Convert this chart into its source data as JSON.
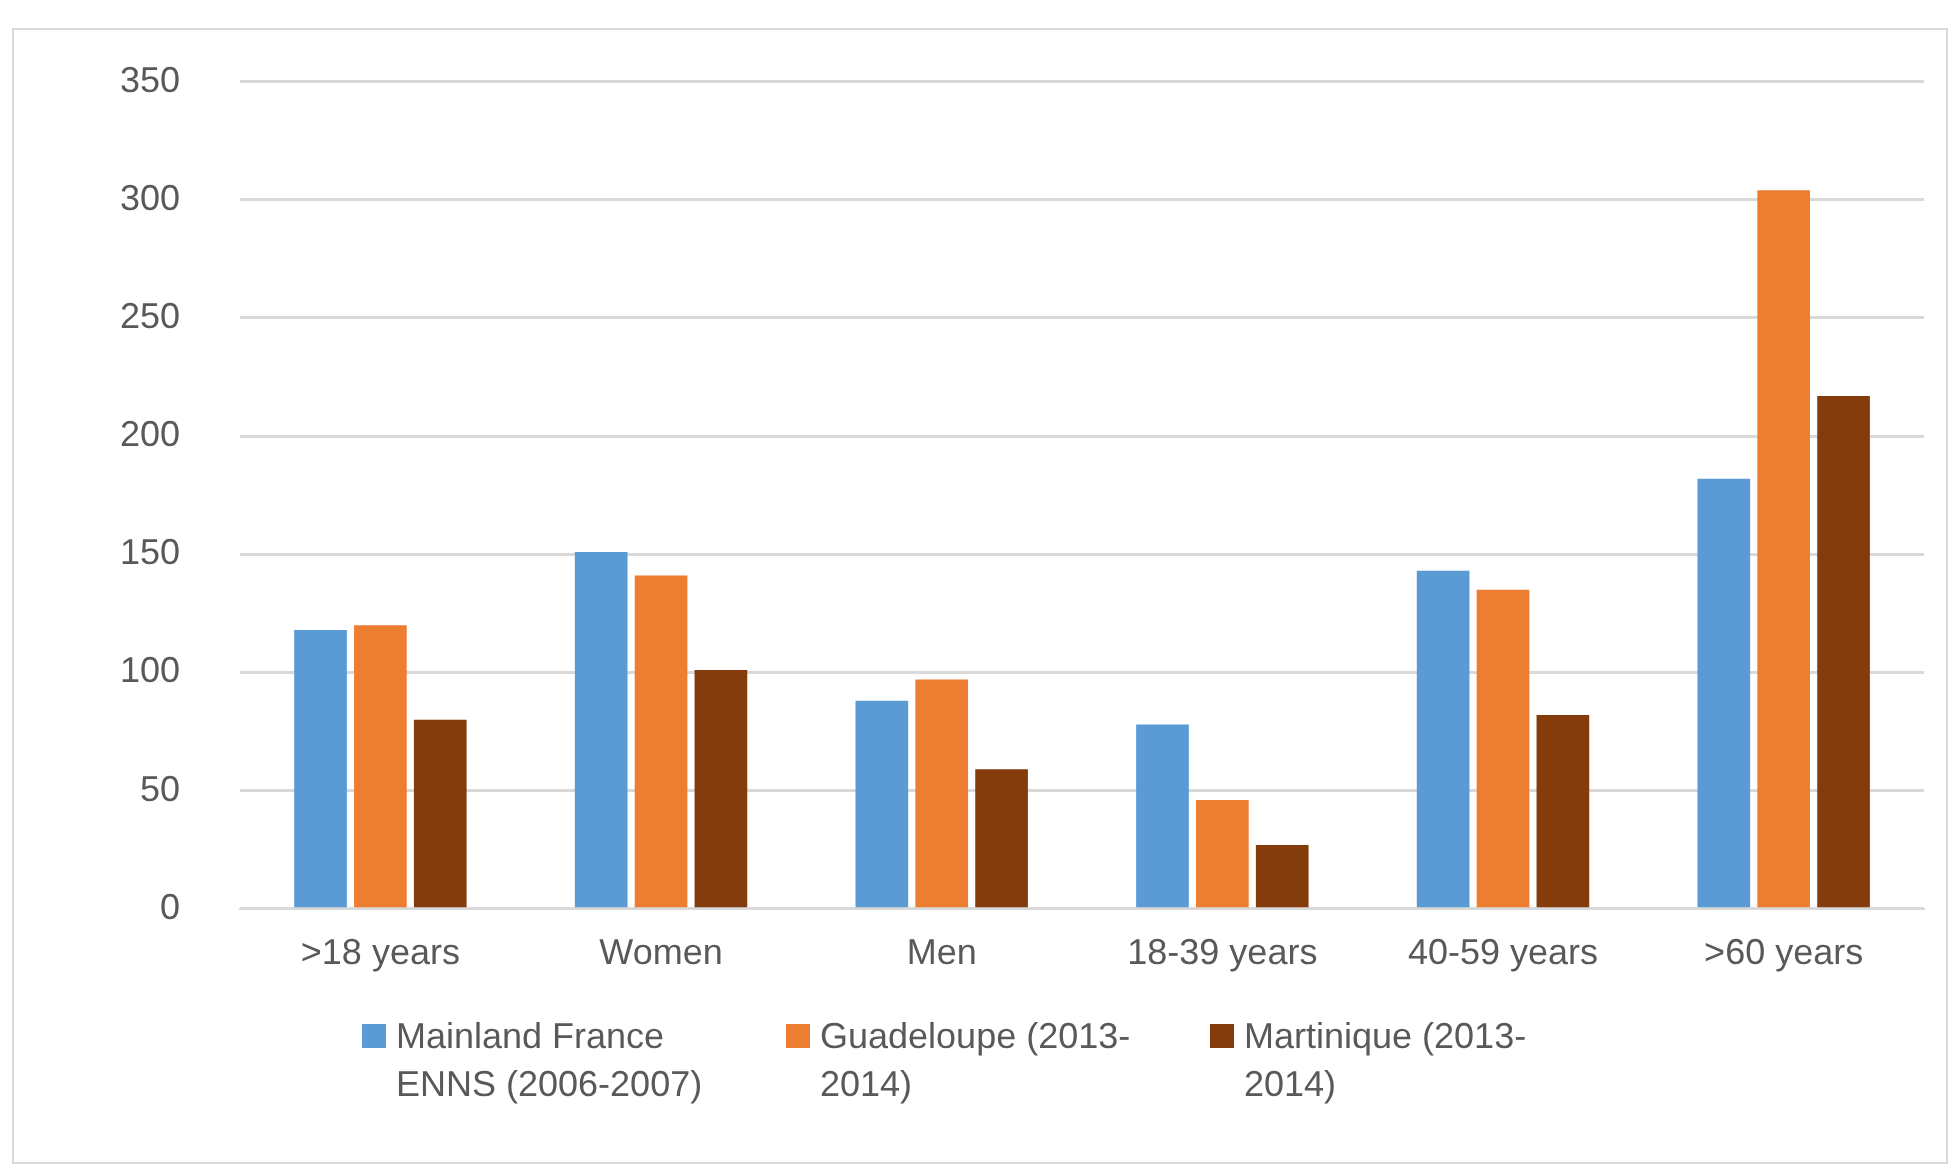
{
  "chart_data": {
    "type": "bar",
    "categories": [
      ">18 years",
      "Women",
      "Men",
      "18-39 years",
      "40-59 years",
      ">60 years"
    ],
    "series": [
      {
        "name": "Mainland France ENNS (2006-2007)",
        "color": "#5b9bd5",
        "values": [
          118,
          151,
          88,
          78,
          143,
          182
        ]
      },
      {
        "name": "Guadeloupe (2013-2014)",
        "color": "#ed7d31",
        "values": [
          120,
          141,
          97,
          46,
          135,
          304
        ]
      },
      {
        "name": "Martinique (2013-2014)",
        "color": "#843c0c",
        "values": [
          80,
          101,
          59,
          27,
          82,
          217
        ]
      }
    ],
    "ylim": [
      0,
      350
    ],
    "yticks": [
      0,
      50,
      100,
      150,
      200,
      250,
      300,
      350
    ],
    "grid": "y",
    "legend": "bottom"
  }
}
